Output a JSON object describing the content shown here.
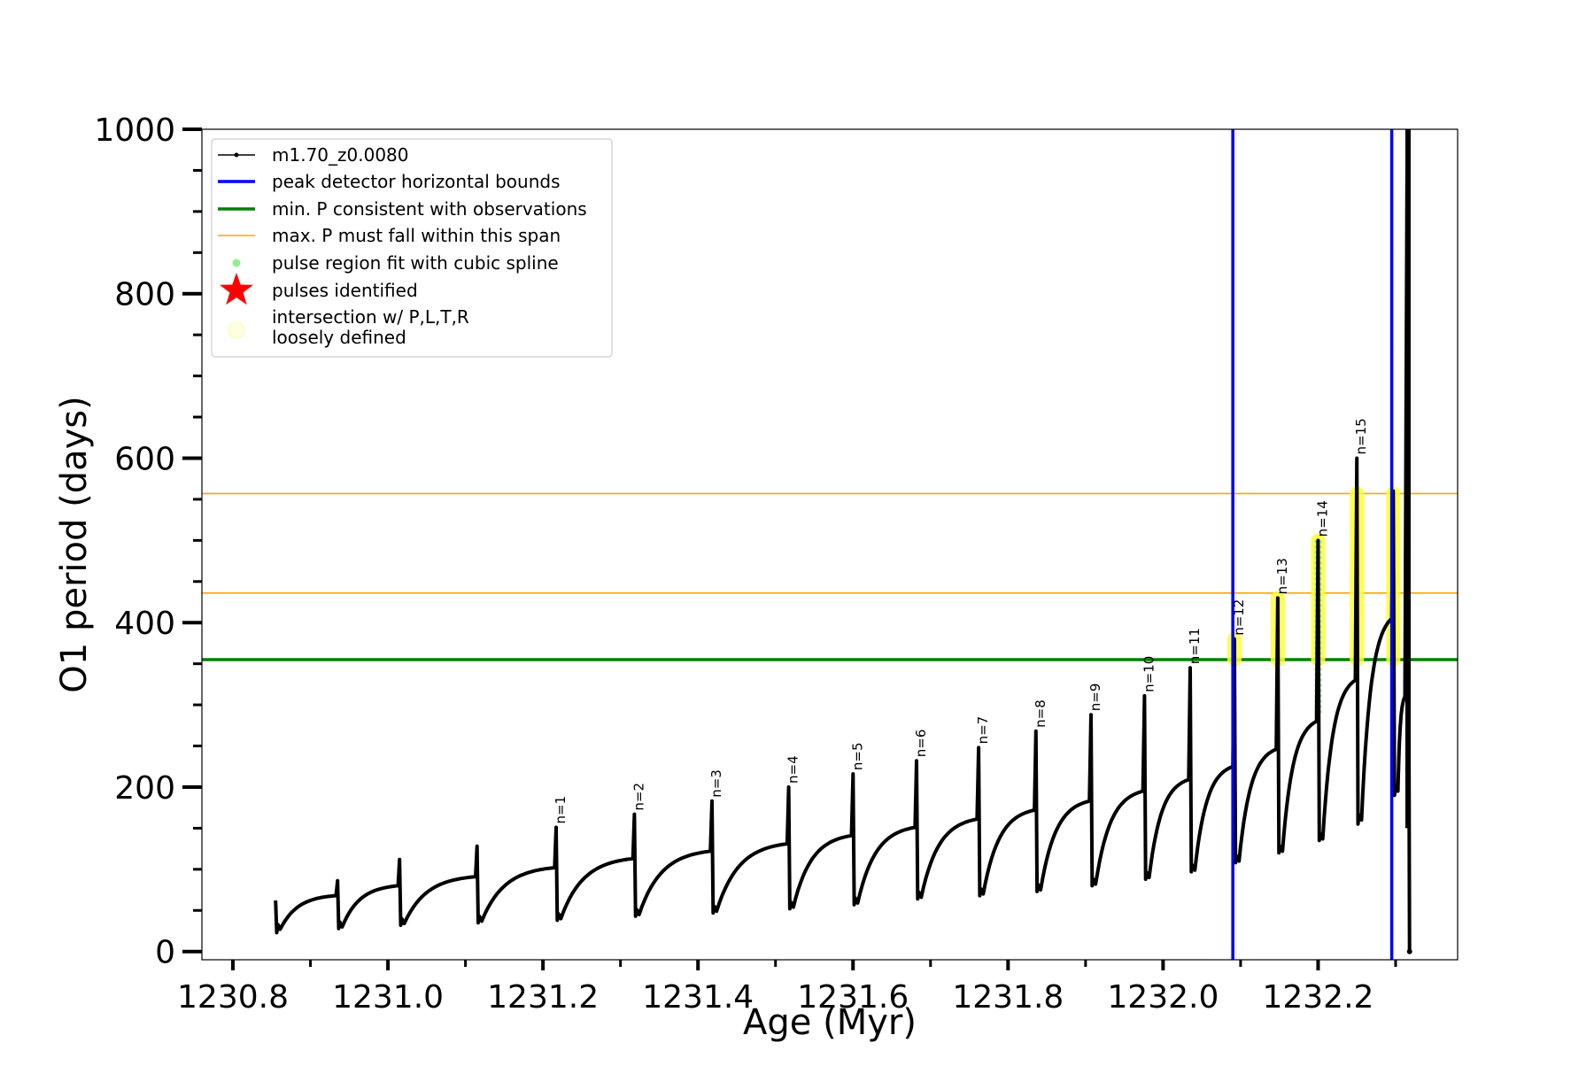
{
  "chart_data": {
    "type": "line",
    "xlabel": "Age (Myr)",
    "ylabel": "O1 period (days)",
    "xlim": [
      1230.76,
      1232.38
    ],
    "ylim": [
      -10,
      1000
    ],
    "xticks": [
      1230.8,
      1231.0,
      1231.2,
      1231.4,
      1231.6,
      1231.8,
      1232.0,
      1232.2
    ],
    "xtick_labels": [
      "1230.8",
      "1231.0",
      "1231.2",
      "1231.4",
      "1231.6",
      "1231.8",
      "1232.0",
      "1232.2"
    ],
    "yticks": [
      0,
      200,
      400,
      600,
      800,
      1000
    ],
    "ytick_labels": [
      "0",
      "200",
      "400",
      "600",
      "800",
      "1000"
    ],
    "legend": {
      "placement": "upper left",
      "entries": [
        {
          "label": "m1.70_z0.0080",
          "kind": "line-marker",
          "color": "#000000"
        },
        {
          "label": "peak detector horizontal bounds",
          "kind": "line",
          "color": "#0000ff"
        },
        {
          "label": "min. P consistent with observations",
          "kind": "line",
          "color": "#008000"
        },
        {
          "label": "max. P must fall within this span",
          "kind": "thin-line",
          "color": "#ffa500"
        },
        {
          "label": "pulse region fit with cubic spline",
          "kind": "dot",
          "color": "#90ee90"
        },
        {
          "label": "pulses identified",
          "kind": "star",
          "color": "#ff0000"
        },
        {
          "label": "intersection w/ P,L,T,R",
          "label2": "loosely defined",
          "kind": "circle",
          "color": "#ffffe0"
        }
      ]
    },
    "hlines": [
      {
        "y": 355,
        "color": "#008000",
        "role": "min. P consistent with observations"
      },
      {
        "y": 436,
        "color": "#ffa500",
        "role": "max. P span lower"
      },
      {
        "y": 557,
        "color": "#ffa500",
        "role": "max. P span upper"
      }
    ],
    "vlines": [
      {
        "x": 1232.09,
        "color": "#0000ff"
      },
      {
        "x": 1232.295,
        "color": "#0000ff"
      }
    ],
    "pulses": [
      {
        "t": 1230.855,
        "base": 23,
        "start": 27,
        "peak": 62,
        "end": 68,
        "label": ""
      },
      {
        "t": 1230.935,
        "base": 28,
        "start": 30,
        "peak": 86,
        "end": 80,
        "label": ""
      },
      {
        "t": 1231.015,
        "base": 32,
        "start": 34,
        "peak": 112,
        "end": 91,
        "label": ""
      },
      {
        "t": 1231.115,
        "base": 35,
        "start": 37,
        "peak": 128,
        "end": 102,
        "label": ""
      },
      {
        "t": 1231.217,
        "base": 38,
        "start": 40,
        "peak": 151,
        "end": 113,
        "label": "n=1"
      },
      {
        "t": 1231.318,
        "base": 43,
        "start": 45,
        "peak": 167,
        "end": 122,
        "label": "n=2"
      },
      {
        "t": 1231.418,
        "base": 47,
        "start": 49,
        "peak": 183,
        "end": 131,
        "label": "n=3"
      },
      {
        "t": 1231.517,
        "base": 52,
        "start": 54,
        "peak": 200,
        "end": 141,
        "label": "n=4"
      },
      {
        "t": 1231.6,
        "base": 57,
        "start": 59,
        "peak": 216,
        "end": 151,
        "label": "n=5"
      },
      {
        "t": 1231.682,
        "base": 64,
        "start": 66,
        "peak": 232,
        "end": 161,
        "label": "n=6"
      },
      {
        "t": 1231.762,
        "base": 68,
        "start": 70,
        "peak": 248,
        "end": 172,
        "label": "n=7"
      },
      {
        "t": 1231.836,
        "base": 73,
        "start": 75,
        "peak": 268,
        "end": 183,
        "label": "n=8"
      },
      {
        "t": 1231.907,
        "base": 80,
        "start": 82,
        "peak": 288,
        "end": 195,
        "label": "n=9"
      },
      {
        "t": 1231.976,
        "base": 88,
        "start": 90,
        "peak": 311,
        "end": 209,
        "label": "n=10"
      },
      {
        "t": 1232.035,
        "base": 97,
        "start": 99,
        "peak": 345,
        "end": 225,
        "label": "n=11"
      },
      {
        "t": 1232.092,
        "base": 108,
        "start": 110,
        "peak": 380,
        "end": 246,
        "label": "n=12"
      },
      {
        "t": 1232.148,
        "base": 120,
        "start": 122,
        "peak": 430,
        "end": 280,
        "label": "n=13"
      },
      {
        "t": 1232.2,
        "base": 135,
        "start": 137,
        "peak": 500,
        "end": 330,
        "label": "n=14"
      },
      {
        "t": 1232.25,
        "base": 155,
        "start": 160,
        "peak": 600,
        "end": 405,
        "label": "n=15"
      },
      {
        "t": 1232.297,
        "base": 190,
        "start": 195,
        "peak": 560,
        "end": 310,
        "label": ""
      }
    ],
    "final_point": {
      "t": 1232.318,
      "value": 0
    },
    "spline_fit_region": {
      "x": 1232.2,
      "y_from": 290,
      "y_to": 500
    },
    "loosely_defined_regions": [
      {
        "x": 1232.092,
        "y_from": 355,
        "y_to": 380
      },
      {
        "x": 1232.148,
        "y_from": 355,
        "y_to": 430
      },
      {
        "x": 1232.2,
        "y_from": 355,
        "y_to": 500
      },
      {
        "x": 1232.25,
        "y_from": 355,
        "y_to": 557
      },
      {
        "x": 1232.297,
        "y_from": 355,
        "y_to": 557
      }
    ]
  }
}
